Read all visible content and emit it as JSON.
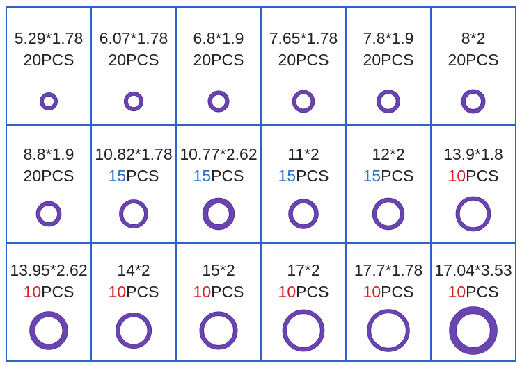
{
  "cells": [
    {
      "size": "5.29*1.78",
      "count": "20",
      "unit": "PCS",
      "count_color": "#222222"
    },
    {
      "size": "6.07*1.78",
      "count": "20",
      "unit": "PCS",
      "count_color": "#222222"
    },
    {
      "size": "6.8*1.9",
      "count": "20",
      "unit": "PCS",
      "count_color": "#222222"
    },
    {
      "size": "7.65*1.78",
      "count": "20",
      "unit": "PCS",
      "count_color": "#222222"
    },
    {
      "size": "7.8*1.9",
      "count": "20",
      "unit": "PCS",
      "count_color": "#222222"
    },
    {
      "size": "8*2",
      "count": "20",
      "unit": "PCS",
      "count_color": "#222222"
    },
    {
      "size": "8.8*1.9",
      "count": "20",
      "unit": "PCS",
      "count_color": "#222222"
    },
    {
      "size": "10.82*1.78",
      "count": "15",
      "unit": "PCS",
      "count_color": "#2e74c6"
    },
    {
      "size": "10.77*2.62",
      "count": "15",
      "unit": "PCS",
      "count_color": "#2e74c6"
    },
    {
      "size": "11*2",
      "count": "15",
      "unit": "PCS",
      "count_color": "#2e74c6"
    },
    {
      "size": "12*2",
      "count": "15",
      "unit": "PCS",
      "count_color": "#2e74c6"
    },
    {
      "size": "13.9*1.8",
      "count": "10",
      "unit": "PCS",
      "count_color": "#d42020"
    },
    {
      "size": "13.95*2.62",
      "count": "10",
      "unit": "PCS",
      "count_color": "#d42020"
    },
    {
      "size": "14*2",
      "count": "10",
      "unit": "PCS",
      "count_color": "#d42020"
    },
    {
      "size": "15*2",
      "count": "10",
      "unit": "PCS",
      "count_color": "#d42020"
    },
    {
      "size": "17*2",
      "count": "10",
      "unit": "PCS",
      "count_color": "#d42020"
    },
    {
      "size": "17.7*1.78",
      "count": "10",
      "unit": "PCS",
      "count_color": "#d42020"
    },
    {
      "size": "17.04*3.53",
      "count": "10",
      "unit": "PCS",
      "count_color": "#d42020"
    }
  ]
}
